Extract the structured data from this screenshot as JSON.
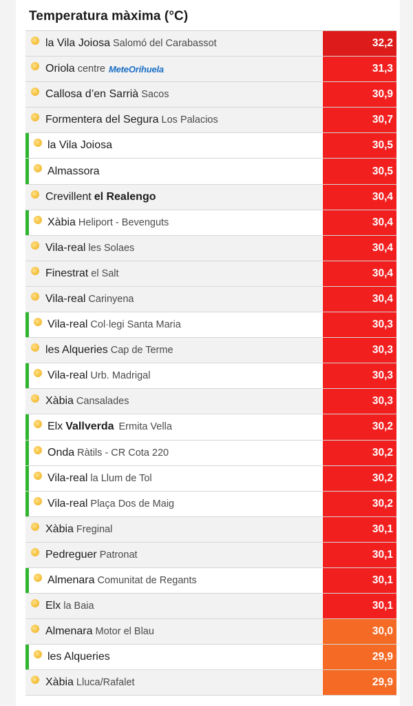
{
  "title": "Temperatura màxima (°C)",
  "colors": {
    "hot": "#f21f1f",
    "hottest": "#de1b1b",
    "warm": "#f56a24",
    "own_station": "#2fb52f",
    "sun_icon": "#f6c343"
  },
  "rows": [
    {
      "town": "la Vila Joiosa",
      "sub": "Salomó del Carabassot",
      "value": "32,2",
      "level": "hottest"
    },
    {
      "town": "Oriola",
      "sub": "centre",
      "logo": "MeteOrihuela",
      "value": "31,3",
      "level": "hot"
    },
    {
      "town": "Callosa d’en Sarrià",
      "sub": "Sacos",
      "value": "30,9",
      "level": "hot"
    },
    {
      "town": "Formentera del Segura",
      "sub": "Los Palacios",
      "value": "30,7",
      "level": "hot"
    },
    {
      "town": "la Vila Joiosa",
      "sub": "",
      "value": "30,5",
      "level": "hot",
      "own": true
    },
    {
      "town": "Almassora",
      "sub": "",
      "value": "30,5",
      "level": "hot",
      "own": true
    },
    {
      "town": "Crevillent",
      "sub": "el Realengo",
      "sub_bold": true,
      "value": "30,4",
      "level": "hot"
    },
    {
      "town": "Xàbia",
      "sub": "Heliport - Bevenguts",
      "value": "30,4",
      "level": "hot",
      "own": true
    },
    {
      "town": "Vila-real",
      "sub": "les Solaes",
      "value": "30,4",
      "level": "hot"
    },
    {
      "town": "Finestrat",
      "sub": "el Salt",
      "value": "30,4",
      "level": "hot"
    },
    {
      "town": "Vila-real",
      "sub": "Carinyena",
      "value": "30,4",
      "level": "hot"
    },
    {
      "town": "Vila-real",
      "sub": "Col·legi Santa Maria",
      "value": "30,3",
      "level": "hot",
      "own": true
    },
    {
      "town": "les Alqueries",
      "sub": "Cap de Terme",
      "value": "30,3",
      "level": "hot"
    },
    {
      "town": "Vila-real",
      "sub": "Urb. Madrigal",
      "value": "30,3",
      "level": "hot",
      "own": true
    },
    {
      "town": "Xàbia",
      "sub": "Cansalades",
      "value": "30,3",
      "level": "hot"
    },
    {
      "town": "Elx",
      "town2": "Vallverda",
      "sub": "Ermita Vella",
      "value": "30,2",
      "level": "hot",
      "own": true
    },
    {
      "town": "Onda",
      "sub": "Ràtils - CR Cota 220",
      "value": "30,2",
      "level": "hot",
      "own": true
    },
    {
      "town": "Vila-real",
      "sub": "la Llum de Tol",
      "value": "30,2",
      "level": "hot",
      "own": true
    },
    {
      "town": "Vila-real",
      "sub": "Plaça Dos de Maig",
      "value": "30,2",
      "level": "hot",
      "own": true
    },
    {
      "town": "Xàbia",
      "sub": "Freginal",
      "value": "30,1",
      "level": "hot"
    },
    {
      "town": "Pedreguer",
      "sub": "Patronat",
      "value": "30,1",
      "level": "hot"
    },
    {
      "town": "Almenara",
      "sub": "Comunitat de Regants",
      "value": "30,1",
      "level": "hot",
      "own": true
    },
    {
      "town": "Elx",
      "sub": "la Baia",
      "value": "30,1",
      "level": "hot"
    },
    {
      "town": "Almenara",
      "sub": "Motor el Blau",
      "value": "30,0",
      "level": "warm"
    },
    {
      "town": "les Alqueries",
      "sub": "",
      "value": "29,9",
      "level": "warm",
      "own": true
    },
    {
      "town": "Xàbia",
      "sub": "Lluca/Rafalet",
      "value": "29,9",
      "level": "warm"
    }
  ]
}
